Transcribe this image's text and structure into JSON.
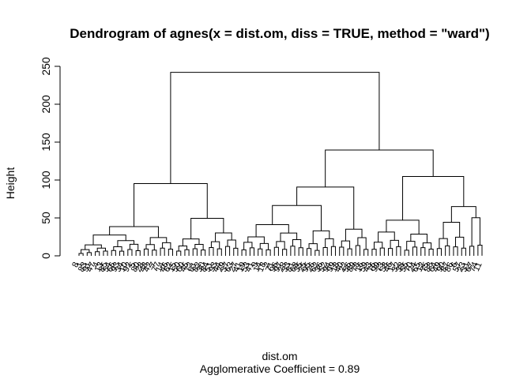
{
  "chart_data": {
    "type": "dendrogram",
    "title": "Dendrogram of  agnes(x = dist.om, diss = TRUE, method = \"ward\")",
    "xlabel": "dist.om",
    "sublabel": "Agglomerative Coefficient =  0.89",
    "ylabel": "Height",
    "ylim": [
      0,
      250
    ],
    "yticks": [
      0,
      50,
      100,
      150,
      200,
      250
    ],
    "leaf_labels": [
      "8",
      "1",
      "83",
      "91",
      "47",
      "4",
      "13",
      "85",
      "54",
      "66",
      "93",
      "34",
      "10",
      "92",
      "5",
      "80",
      "28",
      "48",
      "42",
      "7",
      "77",
      "14",
      "46",
      "62",
      "15",
      "50",
      "60",
      "45",
      "72",
      "61",
      "82",
      "30",
      "84",
      "51",
      "93",
      "44",
      "29",
      "37",
      "63",
      "27",
      "41",
      "19",
      "53",
      "41",
      "9",
      "14",
      "18",
      "2",
      "71",
      "96",
      "97",
      "28",
      "33",
      "81",
      "68",
      "35",
      "25",
      "95",
      "26",
      "62",
      "36",
      "52",
      "94",
      "99",
      "18",
      "40",
      "22",
      "56",
      "89",
      "78",
      "16",
      "59",
      "43",
      "76",
      "99",
      "73",
      "58",
      "46",
      "17",
      "32",
      "38",
      "55",
      "70",
      "24",
      "65",
      "12",
      "75",
      "88",
      "64",
      "49",
      "90",
      "87",
      "86",
      "6",
      "57",
      "23",
      "31",
      "67",
      "74",
      "11"
    ],
    "merges": [
      [
        -1,
        -2,
        3.1
      ],
      [
        -3,
        -4,
        4.3
      ],
      [
        1,
        2,
        8.2
      ],
      [
        -5,
        -6,
        5.5
      ],
      [
        -7,
        -8,
        6.2
      ],
      [
        4,
        5,
        10.1
      ],
      [
        3,
        6,
        14.5
      ],
      [
        -9,
        -10,
        7.0
      ],
      [
        -11,
        -12,
        6.1
      ],
      [
        8,
        9,
        12.0
      ],
      [
        -13,
        -14,
        8.3
      ],
      [
        -15,
        -16,
        6.8
      ],
      [
        11,
        12,
        15.2
      ],
      [
        10,
        13,
        20.1
      ],
      [
        7,
        14,
        27.5
      ],
      [
        -17,
        -18,
        9.0
      ],
      [
        -19,
        -20,
        7.5
      ],
      [
        16,
        17,
        14.8
      ],
      [
        -21,
        -22,
        10.2
      ],
      [
        -23,
        -24,
        8.8
      ],
      [
        19,
        20,
        17.3
      ],
      [
        18,
        21,
        24.1
      ],
      [
        15,
        22,
        38.5
      ],
      [
        -25,
        -26,
        6.3
      ],
      [
        -27,
        -28,
        8.1
      ],
      [
        24,
        25,
        13.0
      ],
      [
        -29,
        -30,
        9.4
      ],
      [
        -31,
        -32,
        7.7
      ],
      [
        27,
        28,
        15.1
      ],
      [
        26,
        29,
        22.3
      ],
      [
        -33,
        -34,
        11.0
      ],
      [
        -35,
        -36,
        9.2
      ],
      [
        31,
        32,
        18.6
      ],
      [
        -37,
        -38,
        12.4
      ],
      [
        -39,
        -40,
        10.0
      ],
      [
        34,
        35,
        20.8
      ],
      [
        33,
        36,
        30.2
      ],
      [
        30,
        37,
        49.5
      ],
      [
        23,
        38,
        95.3
      ],
      [
        -41,
        -42,
        8.0
      ],
      [
        -43,
        -44,
        10.5
      ],
      [
        40,
        41,
        17.8
      ],
      [
        -45,
        -46,
        9.1
      ],
      [
        -47,
        -48,
        7.9
      ],
      [
        43,
        44,
        16.3
      ],
      [
        42,
        45,
        25.0
      ],
      [
        -49,
        -50,
        11.2
      ],
      [
        -51,
        -52,
        8.6
      ],
      [
        47,
        48,
        18.9
      ],
      [
        -53,
        -54,
        12.8
      ],
      [
        -55,
        -56,
        10.7
      ],
      [
        50,
        51,
        21.4
      ],
      [
        49,
        52,
        30.1
      ],
      [
        46,
        53,
        41.2
      ],
      [
        -57,
        -58,
        9.6
      ],
      [
        -59,
        -60,
        7.2
      ],
      [
        55,
        56,
        16.0
      ],
      [
        -61,
        -62,
        10.9
      ],
      [
        -63,
        -64,
        12.3
      ],
      [
        58,
        59,
        22.5
      ],
      [
        57,
        60,
        33.0
      ],
      [
        54,
        61,
        66.4
      ],
      [
        -65,
        -66,
        11.5
      ],
      [
        -67,
        -68,
        9.3
      ],
      [
        63,
        64,
        19.7
      ],
      [
        -69,
        -70,
        13.6
      ],
      [
        -71,
        -72,
        8.4
      ],
      [
        66,
        67,
        23.9
      ],
      [
        65,
        68,
        35.2
      ],
      [
        62,
        69,
        90.8
      ],
      [
        -73,
        -74,
        8.7
      ],
      [
        -75,
        -76,
        10.3
      ],
      [
        71,
        72,
        18.0
      ],
      [
        -77,
        -78,
        9.8
      ],
      [
        -79,
        -80,
        12.1
      ],
      [
        74,
        75,
        20.5
      ],
      [
        73,
        76,
        31.4
      ],
      [
        -81,
        -82,
        7.4
      ],
      [
        -83,
        -84,
        11.6
      ],
      [
        78,
        79,
        19.2
      ],
      [
        -85,
        -86,
        10.8
      ],
      [
        -87,
        -88,
        8.9
      ],
      [
        81,
        82,
        17.1
      ],
      [
        80,
        83,
        28.7
      ],
      [
        77,
        84,
        47.0
      ],
      [
        -89,
        -90,
        9.7
      ],
      [
        -91,
        -92,
        13.2
      ],
      [
        86,
        87,
        22.8
      ],
      [
        -93,
        -94,
        11.9
      ],
      [
        -95,
        -96,
        10.1
      ],
      [
        89,
        90,
        24.6
      ],
      [
        88,
        91,
        44.3
      ],
      [
        -97,
        -98,
        12.6
      ],
      [
        -99,
        -100,
        14.1
      ],
      [
        93,
        94,
        50.2
      ],
      [
        92,
        95,
        65.0
      ],
      [
        85,
        96,
        104.7
      ],
      [
        70,
        97,
        139.6
      ],
      [
        39,
        98,
        242.0
      ]
    ]
  }
}
